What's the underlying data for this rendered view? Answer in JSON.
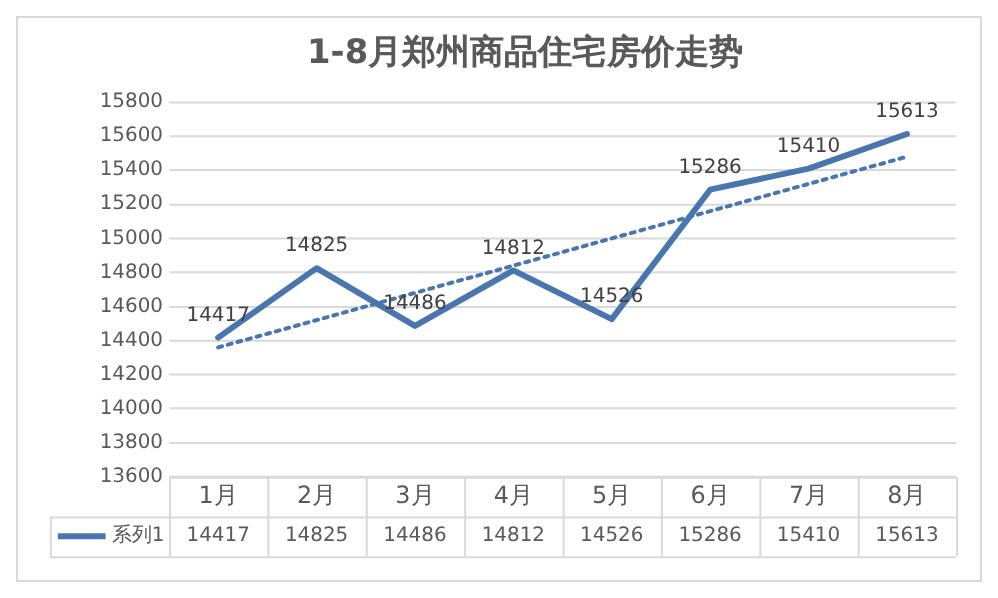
{
  "chart_data": {
    "type": "line",
    "title": "1-8月郑州商品住宅房价走势",
    "categories": [
      "1月",
      "2月",
      "3月",
      "4月",
      "5月",
      "6月",
      "7月",
      "8月"
    ],
    "series": [
      {
        "name": "系列1",
        "color": "#4a76b0",
        "values": [
          14417,
          14825,
          14486,
          14812,
          14526,
          15286,
          15410,
          15613
        ],
        "value_labels": [
          "14417",
          "14825",
          "14486",
          "14812",
          "14526",
          "15286",
          "15410",
          "15613"
        ]
      },
      {
        "type": "line",
        "x": [
          "1月",
          "8月"
        ],
        "values": [
          14360,
          15480
        ],
        "color": "#4a76b0",
        "line_style": "dotted"
      }
    ],
    "ylim": [
      13600,
      15800
    ],
    "yticks": [
      13600,
      13800,
      14000,
      14200,
      14400,
      14600,
      14800,
      15000,
      15200,
      15400,
      15600,
      15800
    ],
    "grid": "y",
    "legend": "bottom",
    "marker": "none",
    "line_style": "solid"
  }
}
